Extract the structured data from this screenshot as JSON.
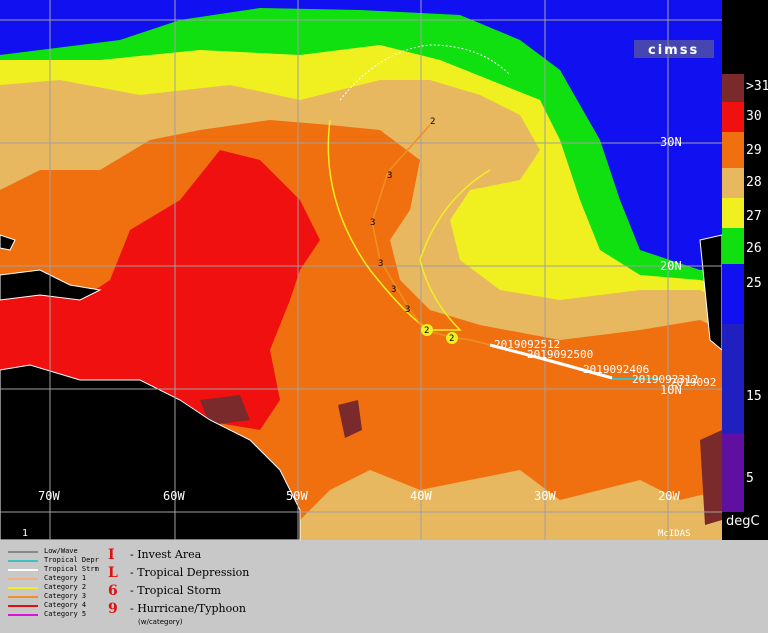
{
  "logo": "cimss",
  "corner_number": "1",
  "mcidas": "McIDAS",
  "lat_labels": [
    "30N",
    "20N",
    "10N"
  ],
  "lon_labels": [
    "70W",
    "60W",
    "50W",
    "40W",
    "30W",
    "20W"
  ],
  "track_categories": [
    "2",
    "3",
    "3",
    "3",
    "3",
    "3",
    "2",
    "2"
  ],
  "dates": [
    "2019092512",
    "2019092500",
    "2019092406",
    "2019092312",
    "2019092"
  ],
  "colorbar": {
    "unit": "degC",
    "labels": [
      ">31",
      "30",
      "29",
      "28",
      "27",
      "26",
      "25",
      "15",
      "5"
    ],
    "colors": [
      "#7a2a2a",
      "#f01010",
      "#f07010",
      "#e8b860",
      "#f0f020",
      "#10e010",
      "#1010f0",
      "#2020c0",
      "#6010a0"
    ]
  },
  "legend": {
    "lines": [
      {
        "label": "Low/Wave",
        "color": "#888888"
      },
      {
        "label": "Tropical Depr",
        "color": "#40c0c0"
      },
      {
        "label": "Tropical Strm",
        "color": "#ffffff"
      },
      {
        "label": "Category 1",
        "color": "#f0b080"
      },
      {
        "label": "Category 2",
        "color": "#f0f020"
      },
      {
        "label": "Category 3",
        "color": "#f09020"
      },
      {
        "label": "Category 4",
        "color": "#e01010"
      },
      {
        "label": "Category 5",
        "color": "#e010e0"
      }
    ],
    "symbols": [
      {
        "glyph": "I",
        "label": "- Invest Area"
      },
      {
        "glyph": "L",
        "label": "- Tropical Depression"
      },
      {
        "glyph": "6",
        "label": "- Tropical Storm"
      },
      {
        "glyph": "9",
        "label": "- Hurricane/Typhoon"
      }
    ],
    "sub_note": "(w/category)"
  },
  "map_colors": {
    "ocean_cold": "#1010f0",
    "c26": "#10e010",
    "c27": "#f0f020",
    "c28": "#e8b860",
    "c29": "#f07010",
    "c30": "#f01010",
    "c31": "#7a2a2a",
    "land": "#000000"
  }
}
